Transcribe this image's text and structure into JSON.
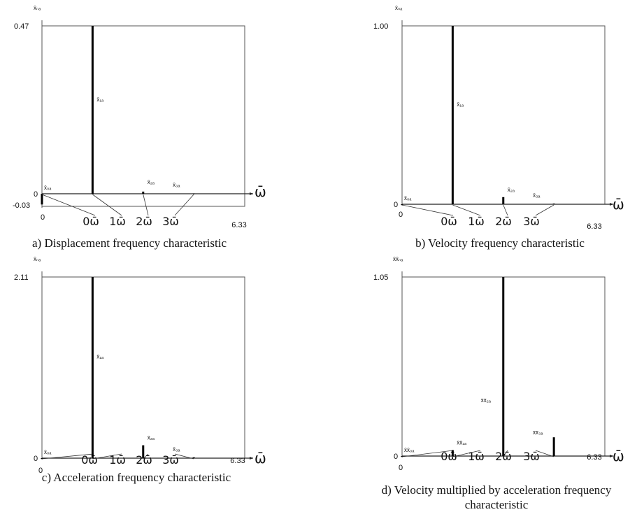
{
  "chart_data": [
    {
      "type": "bar",
      "caption": "a) Displacement frequency characteristic",
      "ylabel": "x̄ₙₐ",
      "xlabel": "ω̄",
      "xlim": [
        0,
        6.33
      ],
      "ylim": [
        -0.03,
        0.47
      ],
      "y_ticks": [
        "0.47",
        "0",
        "-0.03"
      ],
      "x_ticks": [
        "0",
        "6.33"
      ],
      "freq_labels": [
        "0ω̄",
        "1ω̄",
        "2ω̄",
        "3ω̄"
      ],
      "bars": [
        {
          "label": "x̄₀ₐ",
          "x": 0,
          "value": -0.03
        },
        {
          "label": "x̄₁ₐ",
          "x": 1.58,
          "value": 0.47
        },
        {
          "label": "x̄₂ₐ",
          "x": 3.16,
          "value": 0.006
        },
        {
          "label": "x̄₃ₐ",
          "x": 4.74,
          "value": 0.001
        }
      ]
    },
    {
      "type": "bar",
      "caption": "b) Velocity frequency characteristic",
      "ylabel": "x̄ₙₐ",
      "xlabel": "ω̄",
      "xlim": [
        0,
        6.33
      ],
      "ylim": [
        0,
        1.0
      ],
      "y_ticks": [
        "1.00",
        "0"
      ],
      "x_ticks": [
        "0",
        "6.33"
      ],
      "freq_labels": [
        "0ω̄",
        "1ω̄",
        "2ω̄",
        "3ω̄"
      ],
      "bars": [
        {
          "label": "x̄₀ₐ",
          "x": 0,
          "value": 0
        },
        {
          "label": "x̄₁ₐ",
          "x": 1.58,
          "value": 1.0
        },
        {
          "label": "x̄₂ₐ",
          "x": 3.16,
          "value": 0.04
        },
        {
          "label": "x̄₃ₐ",
          "x": 4.74,
          "value": 0.004
        }
      ]
    },
    {
      "type": "bar",
      "caption": "c) Acceleration frequency characteristic",
      "ylabel": "x̄ₙₐ",
      "xlabel": "ω̄",
      "xlim": [
        0,
        6.33
      ],
      "ylim": [
        0,
        2.11
      ],
      "y_ticks": [
        "2.11",
        "0"
      ],
      "x_ticks": [
        "0",
        "6.33"
      ],
      "freq_labels": [
        "0ω̄",
        "1ω̄",
        "2ω̄",
        "3ω̄"
      ],
      "bars": [
        {
          "label": "x̄₀ₐ",
          "x": 0,
          "value": 0
        },
        {
          "label": "x̄₁ₐ",
          "x": 1.58,
          "value": 2.11
        },
        {
          "label": "x̄₂ₐ",
          "x": 3.16,
          "value": 0.15
        },
        {
          "label": "x̄₃ₐ",
          "x": 4.74,
          "value": 0.01
        }
      ]
    },
    {
      "type": "bar",
      "caption": "d) Velocity multiplied by acceleration frequency characteristic",
      "ylabel": "x̄x̄ₙₐ",
      "xlabel": "ω̄",
      "xlim": [
        0,
        6.33
      ],
      "ylim": [
        0,
        1.05
      ],
      "y_ticks": [
        "1.05",
        "0"
      ],
      "x_ticks": [
        "0",
        "6.33"
      ],
      "freq_labels": [
        "0ω̄",
        "1ω̄",
        "2ω̄",
        "3ω̄"
      ],
      "bars": [
        {
          "label": "x̄x̄₀ₐ",
          "x": 0,
          "value": 0
        },
        {
          "label": "x̄x̄₁ₐ",
          "x": 1.58,
          "value": 0.035
        },
        {
          "label": "x̄x̄₂ₐ",
          "x": 3.16,
          "value": 1.05
        },
        {
          "label": "x̄x̄₃ₐ",
          "x": 4.74,
          "value": 0.11
        }
      ]
    }
  ]
}
